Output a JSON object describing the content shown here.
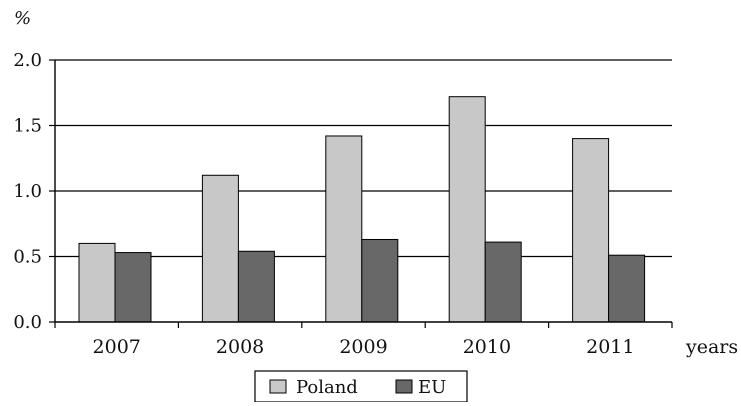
{
  "chart_data": {
    "type": "bar",
    "title": "",
    "ylabel": "%",
    "xlabel": "years",
    "categories": [
      "2007",
      "2008",
      "2009",
      "2010",
      "2011"
    ],
    "series": [
      {
        "name": "Poland",
        "values": [
          0.6,
          1.12,
          1.42,
          1.72,
          1.4
        ]
      },
      {
        "name": "EU",
        "values": [
          0.53,
          0.54,
          0.63,
          0.61,
          0.51
        ]
      }
    ],
    "ylim": [
      0.0,
      2.0
    ],
    "yticks": [
      "0.0",
      "0.5",
      "1.0",
      "1.5",
      "2.0"
    ],
    "grid": true,
    "legend_position": "bottom-center",
    "colors": {
      "Poland": "#c8c8c8",
      "EU": "#686868",
      "outline": "#000000",
      "background": "#ffffff"
    }
  }
}
